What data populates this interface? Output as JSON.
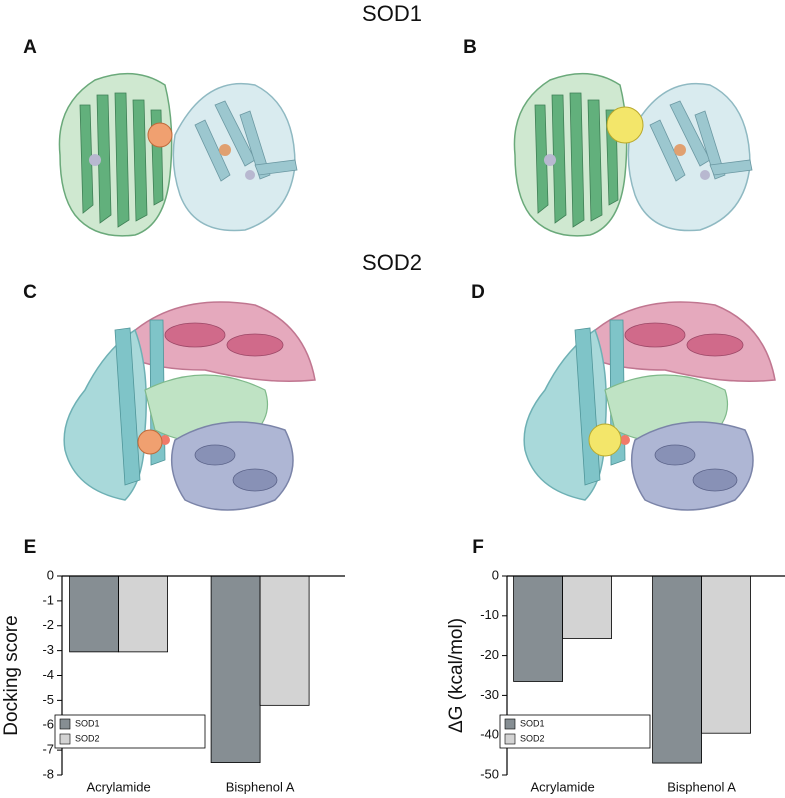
{
  "figure": {
    "sections": [
      "SOD1",
      "SOD2"
    ],
    "panels": [
      "A",
      "B",
      "C",
      "D",
      "E",
      "F"
    ]
  },
  "chart_data": [
    {
      "type": "bar",
      "y_label": "Docking score",
      "categories": [
        "Acrylamide",
        "Bisphenol A"
      ],
      "series": [
        {
          "name": "SOD1",
          "color": "#868e93",
          "values": [
            -3.05,
            -7.5
          ]
        },
        {
          "name": "SOD2",
          "color": "#d3d3d3",
          "values": [
            -3.05,
            -5.2
          ]
        }
      ],
      "ylim": [
        -8,
        0
      ],
      "yticks": [
        0,
        -1,
        -2,
        -3,
        -4,
        -5,
        -6,
        -7,
        -8
      ],
      "legend": "lower left"
    },
    {
      "type": "bar",
      "y_label": "ΔG (kcal/mol)",
      "categories": [
        "Acrylamide",
        "Bisphenol A"
      ],
      "series": [
        {
          "name": "SOD1",
          "color": "#868e93",
          "values": [
            -26.5,
            -47
          ]
        },
        {
          "name": "SOD2",
          "color": "#d3d3d3",
          "values": [
            -15.7,
            -39.5
          ]
        }
      ],
      "ylim": [
        -50,
        0
      ],
      "yticks": [
        0,
        -10,
        -20,
        -30,
        -40,
        -50
      ],
      "legend": "lower left"
    }
  ]
}
